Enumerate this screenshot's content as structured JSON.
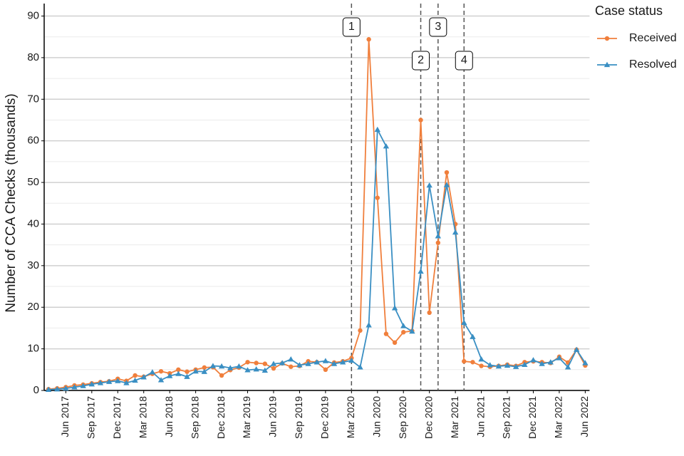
{
  "chart_data": {
    "type": "line",
    "y_label": "Number of CCA Checks (thousands)",
    "legend_title": "Case status",
    "legend_position": "right",
    "categories": [
      null,
      null,
      "Jun 2017",
      null,
      null,
      "Sep 2017",
      null,
      null,
      "Dec 2017",
      null,
      null,
      "Mar 2018",
      null,
      null,
      "Jun 2018",
      null,
      null,
      "Sep 2018",
      null,
      null,
      "Dec 2018",
      null,
      null,
      "Mar 2019",
      null,
      null,
      "Jun 2019",
      null,
      null,
      "Sep 2019",
      null,
      null,
      "Dec 2019",
      null,
      null,
      "Mar 2020",
      null,
      null,
      "Jun 2020",
      null,
      null,
      "Sep 2020",
      null,
      null,
      "Dec 2020",
      null,
      null,
      "Mar 2021",
      null,
      null,
      "Jun 2021",
      null,
      null,
      "Sep 2021",
      null,
      null,
      "Dec 2021",
      null,
      null,
      "Mar 2022",
      null,
      null,
      "Jun 2022"
    ],
    "series": [
      {
        "name": "Received",
        "color": "#f07f3c",
        "marker": "circle",
        "values": [
          0.3,
          0.5,
          0.8,
          1.2,
          1.4,
          1.7,
          2.0,
          2.2,
          2.8,
          2.3,
          3.6,
          3.3,
          4.0,
          4.6,
          4.1,
          5.0,
          4.5,
          5.0,
          5.5,
          5.6,
          3.6,
          4.9,
          5.5,
          6.8,
          6.6,
          6.4,
          5.3,
          6.5,
          5.7,
          5.9,
          7.0,
          6.8,
          5.0,
          6.7,
          7.0,
          7.8,
          14.4,
          84.4,
          46.3,
          13.6,
          11.5,
          14.0,
          14.3,
          65.0,
          18.7,
          35.5,
          52.4,
          40.0,
          7.0,
          6.8,
          5.9,
          5.7,
          5.9,
          6.2,
          5.9,
          6.8,
          7.0,
          6.8,
          6.6,
          8.1,
          6.7,
          9.8,
          6.0
        ]
      },
      {
        "name": "Resolved",
        "color": "#3a8fc3",
        "marker": "triangle",
        "values": [
          0.2,
          0.3,
          0.5,
          0.8,
          1.1,
          1.5,
          1.8,
          2.1,
          2.3,
          1.8,
          2.4,
          3.2,
          4.4,
          2.5,
          3.5,
          4.0,
          3.3,
          4.6,
          4.5,
          5.9,
          5.8,
          5.4,
          5.8,
          4.9,
          5.1,
          4.8,
          6.4,
          6.6,
          7.5,
          6.1,
          6.4,
          6.8,
          7.1,
          6.4,
          6.8,
          7.2,
          5.6,
          15.7,
          62.7,
          58.7,
          19.8,
          15.5,
          14.2,
          28.6,
          49.3,
          37.1,
          49.4,
          38.0,
          16.3,
          12.9,
          7.5,
          6.1,
          5.8,
          6.0,
          5.7,
          6.2,
          7.3,
          6.4,
          6.8,
          7.8,
          5.6,
          9.8,
          6.6
        ]
      }
    ],
    "events": [
      {
        "label": "1",
        "x": 35
      },
      {
        "label": "2",
        "x": 43
      },
      {
        "label": "3",
        "x": 45
      },
      {
        "label": "4",
        "x": 48
      }
    ],
    "ylim": [
      0,
      93
    ],
    "yticks": [
      0,
      10,
      20,
      30,
      40,
      50,
      60,
      70,
      80,
      90
    ],
    "grid": true
  }
}
